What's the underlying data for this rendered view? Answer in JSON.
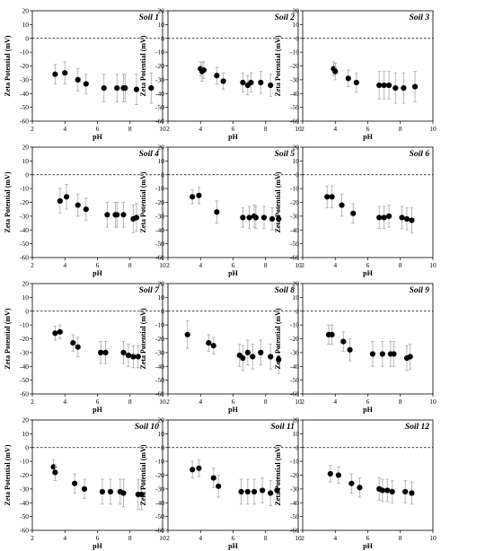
{
  "figure": {
    "grid_rows": 4,
    "grid_cols": 3,
    "line_color": "#000000",
    "marker_color": "#000000",
    "error_bar_color": "#b0b0b0",
    "zero_line_style": "dashed"
  },
  "chart_data": [
    {
      "type": "scatter",
      "title": "Soil 1",
      "xlabel": "pH",
      "ylabel": "Zeta Potential (mV)",
      "xlim": [
        2,
        10
      ],
      "ylim": [
        -60,
        20
      ],
      "x_ticks": [
        "2",
        "4",
        "6",
        "8",
        "10"
      ],
      "y_ticks": [
        "20",
        "10",
        "0",
        "-10",
        "-20",
        "-30",
        "-40",
        "-50",
        "-60"
      ],
      "x": [
        3.4,
        4.0,
        4.8,
        5.3,
        6.4,
        7.2,
        7.6,
        7.7,
        8.4,
        9.3
      ],
      "y": [
        -26,
        -25,
        -30,
        -33,
        -36,
        -36,
        -36,
        -36,
        -37,
        -36
      ],
      "err": [
        7,
        8,
        8,
        7,
        10,
        10,
        10,
        10,
        11,
        11
      ]
    },
    {
      "type": "scatter",
      "title": "Soil 2",
      "xlabel": "pH",
      "ylabel": "Zeta Potential (mV)",
      "xlim": [
        2,
        10
      ],
      "ylim": [
        -60,
        20
      ],
      "x_ticks": [
        "2",
        "4",
        "6",
        "8",
        "10"
      ],
      "y_ticks": [
        "20",
        "10",
        "0",
        "-10",
        "-20",
        "-30",
        "-40",
        "-50",
        "-60"
      ],
      "x": [
        4.0,
        4.1,
        4.2,
        5.0,
        5.4,
        6.6,
        6.9,
        7.1,
        7.7,
        8.3
      ],
      "y": [
        -22,
        -24,
        -23,
        -27,
        -31,
        -32,
        -34,
        -32,
        -32,
        -34
      ],
      "err": [
        5,
        7,
        6,
        6,
        6,
        7,
        7,
        7,
        8,
        8
      ]
    },
    {
      "type": "scatter",
      "title": "Soil 3",
      "xlabel": "pH",
      "ylabel": "Zeta Potential (mV)",
      "xlim": [
        2,
        10
      ],
      "ylim": [
        -60,
        20
      ],
      "x_ticks": [
        "2",
        "4",
        "6",
        "8",
        "10"
      ],
      "y_ticks": [
        "20",
        "10",
        "0",
        "-10",
        "-20",
        "-30",
        "-40",
        "-50",
        "-60"
      ],
      "x": [
        3.9,
        4.0,
        4.8,
        5.3,
        6.7,
        7.0,
        7.3,
        7.7,
        8.2,
        8.9
      ],
      "y": [
        -22,
        -24,
        -29,
        -32,
        -34,
        -34,
        -34,
        -36,
        -36,
        -35
      ],
      "err": [
        5,
        6,
        6,
        7,
        10,
        10,
        10,
        11,
        11,
        11
      ]
    },
    {
      "type": "scatter",
      "title": "Soil 4",
      "xlabel": "pH",
      "ylabel": "Zeta Potential (mV)",
      "xlim": [
        2,
        10
      ],
      "ylim": [
        -60,
        20
      ],
      "x_ticks": [
        "2",
        "4",
        "6",
        "8",
        "10"
      ],
      "y_ticks": [
        "20",
        "10",
        "0",
        "-10",
        "-20",
        "-30",
        "-40",
        "-50",
        "-60"
      ],
      "x": [
        3.7,
        4.1,
        4.8,
        5.3,
        6.6,
        7.1,
        7.2,
        7.6,
        8.2,
        8.4
      ],
      "y": [
        -19,
        -16,
        -22,
        -25,
        -29,
        -29,
        -29,
        -29,
        -32,
        -31
      ],
      "err": [
        9,
        9,
        8,
        8,
        9,
        9,
        9,
        9,
        10,
        10
      ]
    },
    {
      "type": "scatter",
      "title": "Soil 5",
      "xlabel": "pH",
      "ylabel": "Zeta Potential (mV)",
      "xlim": [
        2,
        10
      ],
      "ylim": [
        -60,
        20
      ],
      "x_ticks": [
        "2",
        "4",
        "6",
        "8",
        "10"
      ],
      "y_ticks": [
        "20",
        "10",
        "0",
        "-10",
        "-20",
        "-30",
        "-40",
        "-50",
        "-60"
      ],
      "x": [
        3.5,
        3.9,
        5.0,
        6.6,
        7.0,
        7.3,
        7.4,
        7.9,
        8.4,
        8.8
      ],
      "y": [
        -16,
        -15,
        -27,
        -31,
        -31,
        -30,
        -31,
        -31,
        -32,
        -32
      ],
      "err": [
        5,
        6,
        8,
        7,
        8,
        8,
        8,
        8,
        8,
        9
      ]
    },
    {
      "type": "scatter",
      "title": "Soil 6",
      "xlabel": "pH",
      "ylabel": "Zeta Potential (mV)",
      "xlim": [
        2,
        10
      ],
      "ylim": [
        -60,
        20
      ],
      "x_ticks": [
        "2",
        "4",
        "6",
        "8",
        "10"
      ],
      "y_ticks": [
        "20",
        "10",
        "0",
        "-10",
        "-20",
        "-30",
        "-40",
        "-50",
        "-60"
      ],
      "x": [
        3.5,
        3.8,
        4.4,
        5.1,
        6.7,
        7.0,
        7.3,
        8.1,
        8.4,
        8.7
      ],
      "y": [
        -16,
        -16,
        -22,
        -28,
        -31,
        -31,
        -30,
        -31,
        -32,
        -33
      ],
      "err": [
        8,
        8,
        8,
        7,
        8,
        8,
        8,
        8,
        8,
        9
      ]
    },
    {
      "type": "scatter",
      "title": "Soil 7",
      "xlabel": "pH",
      "ylabel": "Zeta Potential (mV)",
      "xlim": [
        2,
        10
      ],
      "ylim": [
        -60,
        20
      ],
      "x_ticks": [
        "2",
        "4",
        "6",
        "8",
        "10"
      ],
      "y_ticks": [
        "20",
        "10",
        "0",
        "-10",
        "-20",
        "-30",
        "-40",
        "-50",
        "-60"
      ],
      "x": [
        3.4,
        3.7,
        4.5,
        4.8,
        6.2,
        6.5,
        7.6,
        7.9,
        8.2,
        8.5
      ],
      "y": [
        -16,
        -15,
        -23,
        -26,
        -30,
        -30,
        -30,
        -32,
        -33,
        -33
      ],
      "err": [
        5,
        5,
        6,
        7,
        8,
        8,
        8,
        8,
        8,
        8
      ]
    },
    {
      "type": "scatter",
      "title": "Soil 8",
      "xlabel": "pH",
      "ylabel": "Zeta Potential (mV)",
      "xlim": [
        2,
        10
      ],
      "ylim": [
        -60,
        20
      ],
      "x_ticks": [
        "2",
        "4",
        "6",
        "8",
        "10"
      ],
      "y_ticks": [
        "20",
        "10",
        "0",
        "-10",
        "-20",
        "-30",
        "-40",
        "-50",
        "-60"
      ],
      "x": [
        3.2,
        4.5,
        4.8,
        6.4,
        6.6,
        6.9,
        7.2,
        7.7,
        8.3,
        8.8
      ],
      "y": [
        -17,
        -23,
        -25,
        -32,
        -34,
        -30,
        -33,
        -30,
        -33,
        -35
      ],
      "err": [
        10,
        6,
        6,
        8,
        9,
        9,
        9,
        9,
        9,
        10
      ]
    },
    {
      "type": "scatter",
      "title": "Soil 9",
      "xlabel": "pH",
      "ylabel": "Zeta Potential (mV)",
      "xlim": [
        2,
        10
      ],
      "ylim": [
        -60,
        20
      ],
      "x_ticks": [
        "2",
        "4",
        "6",
        "8",
        "10"
      ],
      "y_ticks": [
        "20",
        "10",
        "0",
        "-10",
        "-20",
        "-30",
        "-40",
        "-50",
        "-60"
      ],
      "x": [
        3.6,
        3.8,
        4.5,
        4.9,
        6.3,
        6.9,
        7.4,
        7.6,
        8.4,
        8.6
      ],
      "y": [
        -17,
        -17,
        -22,
        -28,
        -31,
        -31,
        -31,
        -31,
        -34,
        -33
      ],
      "err": [
        7,
        7,
        7,
        8,
        9,
        9,
        9,
        9,
        9,
        9
      ]
    },
    {
      "type": "scatter",
      "title": "Soil 10",
      "xlabel": "pH",
      "ylabel": "Zeta Potential (mV)",
      "xlim": [
        2,
        10
      ],
      "ylim": [
        -60,
        20
      ],
      "x_ticks": [
        "2",
        "4",
        "6",
        "8",
        "10"
      ],
      "y_ticks": [
        "20",
        "10",
        "0",
        "-10",
        "-20",
        "-30",
        "-40",
        "-50",
        "-60"
      ],
      "x": [
        3.3,
        3.4,
        4.6,
        5.2,
        6.3,
        6.8,
        7.4,
        7.6,
        8.5,
        8.7
      ],
      "y": [
        -14,
        -18,
        -26,
        -30,
        -32,
        -32,
        -32,
        -33,
        -34,
        -34
      ],
      "err": [
        5,
        6,
        7,
        7,
        9,
        9,
        9,
        10,
        11,
        11
      ]
    },
    {
      "type": "scatter",
      "title": "Soil 11",
      "xlabel": "pH",
      "ylabel": "Zeta Potential (mV)",
      "xlim": [
        2,
        10
      ],
      "ylim": [
        -60,
        20
      ],
      "x_ticks": [
        "2",
        "4",
        "6",
        "8",
        "10"
      ],
      "y_ticks": [
        "20",
        "10",
        "0",
        "-10",
        "-20",
        "-30",
        "-40",
        "-50",
        "-60"
      ],
      "x": [
        3.5,
        3.9,
        4.8,
        5.1,
        6.5,
        6.9,
        7.3,
        7.8,
        8.3,
        8.7
      ],
      "y": [
        -16,
        -15,
        -22,
        -28,
        -32,
        -32,
        -32,
        -31,
        -33,
        -31
      ],
      "err": [
        6,
        6,
        7,
        8,
        9,
        9,
        9,
        9,
        9,
        9
      ]
    },
    {
      "type": "scatter",
      "title": "Soil 12",
      "xlabel": "pH",
      "ylabel": "Zeta Potential (mV)",
      "xlim": [
        2,
        10
      ],
      "ylim": [
        -60,
        20
      ],
      "x_ticks": [
        "2",
        "4",
        "6",
        "8",
        "10"
      ],
      "y_ticks": [
        "20",
        "10",
        "0",
        "-10",
        "-20",
        "-30",
        "-40",
        "-50",
        "-60"
      ],
      "x": [
        3.7,
        4.2,
        5.0,
        5.5,
        6.7,
        6.9,
        7.2,
        7.5,
        8.3,
        8.7
      ],
      "y": [
        -19,
        -20,
        -26,
        -29,
        -30,
        -31,
        -31,
        -32,
        -32,
        -33
      ],
      "err": [
        6,
        6,
        7,
        7,
        8,
        8,
        8,
        8,
        8,
        8
      ]
    }
  ]
}
